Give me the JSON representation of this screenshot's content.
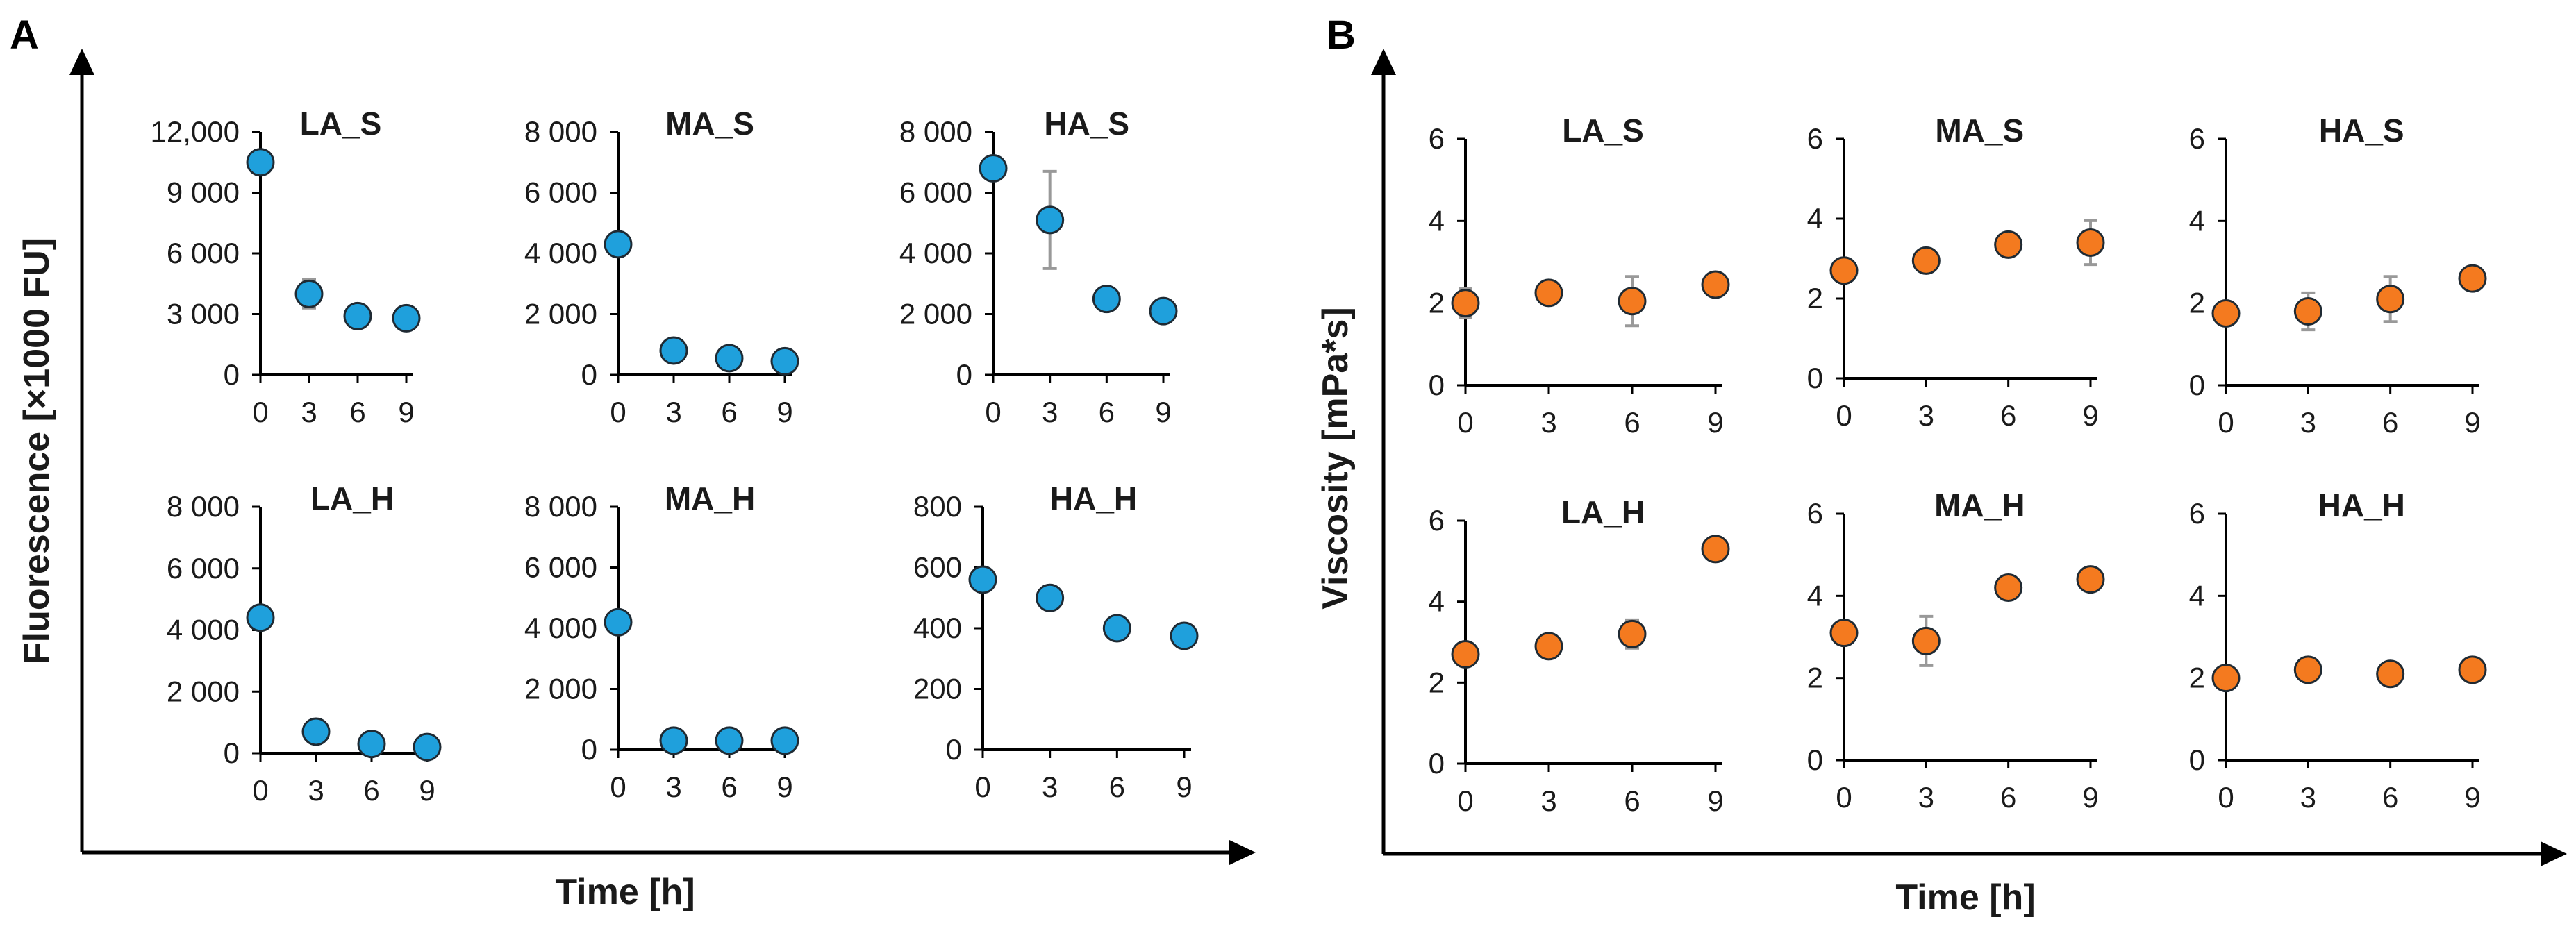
{
  "panels": [
    {
      "letter": "A",
      "xlabel": "Time [h]",
      "ylabel": "Fluorescence [×1000 FU]"
    },
    {
      "letter": "B",
      "xlabel": "Time [h]",
      "ylabel": "Viscosity [mPa*s]"
    }
  ],
  "colors": {
    "fluorescence": "#1fa0dc",
    "viscosity": "#f47a1f",
    "errorbar": "#999999",
    "axis": "#000000",
    "edge": "#1f2a33"
  },
  "chart_data": [
    {
      "type": "scatter",
      "panel": "A",
      "title": "LA_S",
      "x": [
        0,
        3,
        6,
        9
      ],
      "y": [
        10500,
        4000,
        2900,
        2800
      ],
      "err": [
        0,
        700,
        0,
        0
      ],
      "xlim": [
        0,
        9
      ],
      "ylim": [
        0,
        12000
      ],
      "yticks": [
        0,
        3000,
        6000,
        9000,
        12000
      ],
      "ytick_labels": [
        "0",
        "3 000",
        "6 000",
        "9 000",
        "12,000"
      ],
      "xticks": [
        0,
        3,
        6,
        9
      ],
      "xtick_labels": [
        "0",
        "3",
        "6",
        "9"
      ],
      "color": "#1fa0dc"
    },
    {
      "type": "scatter",
      "panel": "A",
      "title": "MA_S",
      "x": [
        0,
        3,
        6,
        9
      ],
      "y": [
        4300,
        800,
        550,
        450
      ],
      "err": [
        0,
        0,
        0,
        0
      ],
      "xlim": [
        0,
        9
      ],
      "ylim": [
        0,
        8000
      ],
      "yticks": [
        0,
        2000,
        4000,
        6000,
        8000
      ],
      "ytick_labels": [
        "0",
        "2 000",
        "4 000",
        "6 000",
        "8 000"
      ],
      "xticks": [
        0,
        3,
        6,
        9
      ],
      "xtick_labels": [
        "0",
        "3",
        "6",
        "9"
      ],
      "color": "#1fa0dc"
    },
    {
      "type": "scatter",
      "panel": "A",
      "title": "HA_S",
      "x": [
        0,
        3,
        6,
        9
      ],
      "y": [
        6800,
        5100,
        2500,
        2100
      ],
      "err": [
        0,
        1600,
        0,
        0
      ],
      "xlim": [
        0,
        9
      ],
      "ylim": [
        0,
        8000
      ],
      "yticks": [
        0,
        2000,
        4000,
        6000,
        8000
      ],
      "ytick_labels": [
        "0",
        "2 000",
        "4 000",
        "6 000",
        "8 000"
      ],
      "xticks": [
        0,
        3,
        6,
        9
      ],
      "xtick_labels": [
        "0",
        "3",
        "6",
        "9"
      ],
      "color": "#1fa0dc"
    },
    {
      "type": "scatter",
      "panel": "A",
      "title": "LA_H",
      "x": [
        0,
        3,
        6,
        9
      ],
      "y": [
        4400,
        700,
        300,
        200
      ],
      "err": [
        0,
        0,
        0,
        0
      ],
      "xlim": [
        0,
        9
      ],
      "ylim": [
        0,
        8000
      ],
      "yticks": [
        0,
        2000,
        4000,
        6000,
        8000
      ],
      "ytick_labels": [
        "0",
        "2 000",
        "4 000",
        "6 000",
        "8 000"
      ],
      "xticks": [
        0,
        3,
        6,
        9
      ],
      "xtick_labels": [
        "0",
        "3",
        "6",
        "9"
      ],
      "color": "#1fa0dc"
    },
    {
      "type": "scatter",
      "panel": "A",
      "title": "MA_H",
      "x": [
        0,
        3,
        6,
        9
      ],
      "y": [
        4200,
        300,
        300,
        300
      ],
      "err": [
        0,
        0,
        0,
        0
      ],
      "xlim": [
        0,
        9
      ],
      "ylim": [
        0,
        8000
      ],
      "yticks": [
        0,
        2000,
        4000,
        6000,
        8000
      ],
      "ytick_labels": [
        "0",
        "2 000",
        "4 000",
        "6 000",
        "8 000"
      ],
      "xticks": [
        0,
        3,
        6,
        9
      ],
      "xtick_labels": [
        "0",
        "3",
        "6",
        "9"
      ],
      "color": "#1fa0dc"
    },
    {
      "type": "scatter",
      "panel": "A",
      "title": "HA_H",
      "x": [
        0,
        3,
        6,
        9
      ],
      "y": [
        560,
        500,
        400,
        375
      ],
      "err": [
        0,
        0,
        0,
        0
      ],
      "xlim": [
        0,
        9
      ],
      "ylim": [
        0,
        800
      ],
      "yticks": [
        0,
        200,
        400,
        600,
        800
      ],
      "ytick_labels": [
        "0",
        "200",
        "400",
        "600",
        "800"
      ],
      "xticks": [
        0,
        3,
        6,
        9
      ],
      "xtick_labels": [
        "0",
        "3",
        "6",
        "9"
      ],
      "color": "#1fa0dc"
    },
    {
      "type": "scatter",
      "panel": "B",
      "title": "LA_S",
      "x": [
        0,
        3,
        6,
        9
      ],
      "y": [
        2.0,
        2.25,
        2.05,
        2.45
      ],
      "err": [
        0.35,
        0,
        0.6,
        0
      ],
      "xlim": [
        0,
        9
      ],
      "ylim": [
        0,
        6
      ],
      "yticks": [
        0,
        2,
        4,
        6
      ],
      "ytick_labels": [
        "0",
        "2",
        "4",
        "6"
      ],
      "xticks": [
        0,
        3,
        6,
        9
      ],
      "xtick_labels": [
        "0",
        "3",
        "6",
        "9"
      ],
      "color": "#f47a1f"
    },
    {
      "type": "scatter",
      "panel": "B",
      "title": "MA_S",
      "x": [
        0,
        3,
        6,
        9
      ],
      "y": [
        2.7,
        2.95,
        3.35,
        3.4
      ],
      "err": [
        0,
        0,
        0,
        0.55
      ],
      "xlim": [
        0,
        9
      ],
      "ylim": [
        0,
        6
      ],
      "yticks": [
        0,
        2,
        4,
        6
      ],
      "ytick_labels": [
        "0",
        "2",
        "4",
        "6"
      ],
      "xticks": [
        0,
        3,
        6,
        9
      ],
      "xtick_labels": [
        "0",
        "3",
        "6",
        "9"
      ],
      "color": "#f47a1f"
    },
    {
      "type": "scatter",
      "panel": "B",
      "title": "HA_S",
      "x": [
        0,
        3,
        6,
        9
      ],
      "y": [
        1.75,
        1.8,
        2.1,
        2.6
      ],
      "err": [
        0,
        0.45,
        0.55,
        0
      ],
      "xlim": [
        0,
        9
      ],
      "ylim": [
        0,
        6
      ],
      "yticks": [
        0,
        2,
        4,
        6
      ],
      "ytick_labels": [
        "0",
        "2",
        "4",
        "6"
      ],
      "xticks": [
        0,
        3,
        6,
        9
      ],
      "xtick_labels": [
        "0",
        "3",
        "6",
        "9"
      ],
      "color": "#f47a1f"
    },
    {
      "type": "scatter",
      "panel": "B",
      "title": "LA_H",
      "x": [
        0,
        3,
        6,
        9
      ],
      "y": [
        2.7,
        2.9,
        3.2,
        5.3
      ],
      "err": [
        0,
        0,
        0.35,
        0
      ],
      "xlim": [
        0,
        9
      ],
      "ylim": [
        0,
        6
      ],
      "yticks": [
        0,
        2,
        4,
        6
      ],
      "ytick_labels": [
        "0",
        "2",
        "4",
        "6"
      ],
      "xticks": [
        0,
        3,
        6,
        9
      ],
      "xtick_labels": [
        "0",
        "3",
        "6",
        "9"
      ],
      "color": "#f47a1f"
    },
    {
      "type": "scatter",
      "panel": "B",
      "title": "MA_H",
      "x": [
        0,
        3,
        6,
        9
      ],
      "y": [
        3.1,
        2.9,
        4.2,
        4.4
      ],
      "err": [
        0,
        0.6,
        0,
        0
      ],
      "xlim": [
        0,
        9
      ],
      "ylim": [
        0,
        6
      ],
      "yticks": [
        0,
        2,
        4,
        6
      ],
      "ytick_labels": [
        "0",
        "2",
        "4",
        "6"
      ],
      "xticks": [
        0,
        3,
        6,
        9
      ],
      "xtick_labels": [
        "0",
        "3",
        "6",
        "9"
      ],
      "color": "#f47a1f"
    },
    {
      "type": "scatter",
      "panel": "B",
      "title": "HA_H",
      "x": [
        0,
        3,
        6,
        9
      ],
      "y": [
        2.0,
        2.2,
        2.1,
        2.2
      ],
      "err": [
        0,
        0,
        0,
        0
      ],
      "xlim": [
        0,
        9
      ],
      "ylim": [
        0,
        6
      ],
      "yticks": [
        0,
        2,
        4,
        6
      ],
      "ytick_labels": [
        "0",
        "2",
        "4",
        "6"
      ],
      "xticks": [
        0,
        3,
        6,
        9
      ],
      "xtick_labels": [
        "0",
        "3",
        "6",
        "9"
      ],
      "color": "#f47a1f"
    }
  ]
}
